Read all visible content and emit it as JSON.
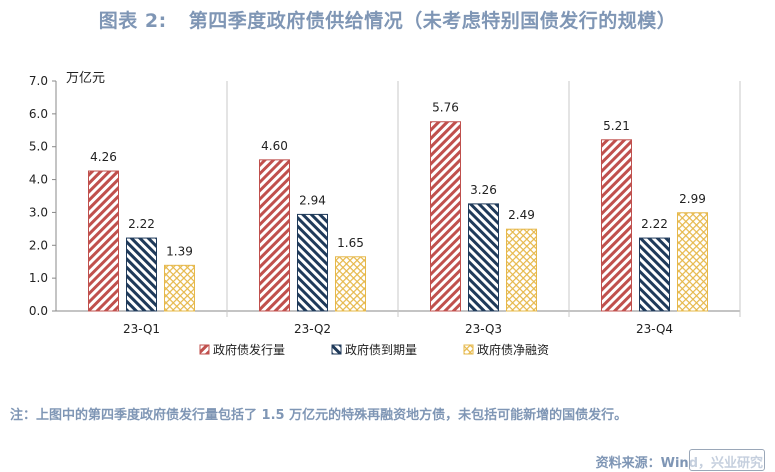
{
  "header": {
    "figure_label": "图表 2:",
    "title": "第四季度政府债供给情况（未考虑特别国债发行的规模）"
  },
  "chart_data": {
    "type": "bar",
    "unit_label": "万亿元",
    "categories": [
      "23-Q1",
      "23-Q2",
      "23-Q3",
      "23-Q4"
    ],
    "series": [
      {
        "name": "政府债发行量",
        "values": [
          4.26,
          4.6,
          5.76,
          5.21
        ],
        "color": "#c0504d",
        "pattern": "diagonal-up"
      },
      {
        "name": "政府债到期量",
        "values": [
          2.22,
          2.94,
          3.26,
          2.22
        ],
        "color": "#1f3a5a",
        "pattern": "diagonal-down"
      },
      {
        "name": "政府债净融资",
        "values": [
          1.39,
          1.65,
          2.49,
          2.99
        ],
        "color": "#e6b84a",
        "pattern": "crosshatch"
      }
    ],
    "yticks": [
      "0.0",
      "1.0",
      "2.0",
      "3.0",
      "4.0",
      "5.0",
      "6.0",
      "7.0"
    ],
    "ylim": [
      0,
      7
    ],
    "grid": "vertical-category-separators",
    "legend_position": "bottom"
  },
  "footer": {
    "note": "注：上图中的第四季度政府债发行量包括了 1.5 万亿元的特殊再融资地方债，未包括可能新增的国债发行。",
    "source": "资料来源：Wind，兴业研究"
  }
}
